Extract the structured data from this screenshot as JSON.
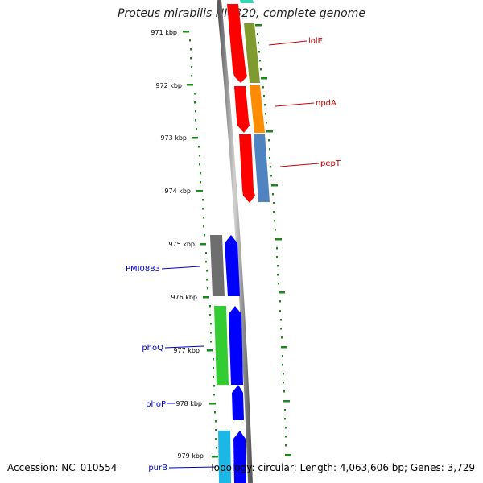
{
  "title": "Proteus mirabilis HI4320, complete genome",
  "footer": {
    "accession": "Accession: NC_010554",
    "summary": "Topology: circular; Length: 4,063,606 bp; Genes: 3,729"
  },
  "colors": {
    "backbone": "#8c8c8c",
    "tick": "#1a8a1a",
    "forward_label": "#cc0000",
    "reverse_label": "#0000cc",
    "red": "#ff0000",
    "olive": "#7f9a2e",
    "orange": "#ff8c00",
    "steelblue": "#4f84c0",
    "gray": "#6e6e6e",
    "blue": "#0000ff",
    "green": "#33cc33",
    "cyan": "#1ab8e6",
    "teal": "#33d9b2"
  },
  "ruler_labels": [
    "971 kbp",
    "972 kbp",
    "973 kbp",
    "974 kbp",
    "975 kbp",
    "976 kbp",
    "977 kbp",
    "978 kbp",
    "979 kbp"
  ],
  "gene_labels": [
    "lolE",
    "npdA",
    "pepT",
    "PMI0883",
    "phoQ",
    "phoP",
    "purB"
  ]
}
